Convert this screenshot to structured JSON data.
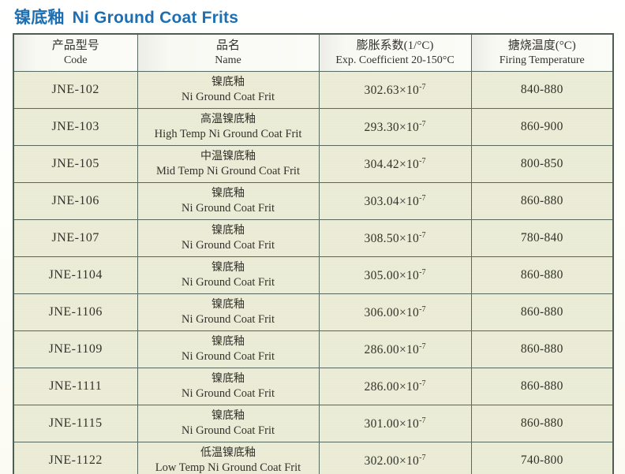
{
  "page": {
    "title_cn": "镍底釉",
    "title_en": "Ni Ground Coat Frits"
  },
  "colors": {
    "title_blue": "#1e6fb2",
    "row_background": "#ecedd8",
    "header_background": "#fbfbf7",
    "grid_border": "#5a6a60"
  },
  "table": {
    "headers": [
      {
        "cn": "产品型号",
        "en": "Code"
      },
      {
        "cn": "品名",
        "en": "Name"
      },
      {
        "cn": "膨胀系数(1/°C)",
        "en": "Exp. Coefficient 20-150°C"
      },
      {
        "cn": "搪烧温度(°C)",
        "en": "Firing Temperature"
      }
    ],
    "coef_times": "×10",
    "coef_power": "-7",
    "rows": [
      {
        "code": "JNE-102",
        "name_cn": "镍底釉",
        "name_en": "Ni Ground Coat Frit",
        "coef": "302.63",
        "firing": "840-880"
      },
      {
        "code": "JNE-103",
        "name_cn": "高温镍底釉",
        "name_en": "High Temp Ni Ground Coat Frit",
        "coef": "293.30",
        "firing": "860-900"
      },
      {
        "code": "JNE-105",
        "name_cn": "中温镍底釉",
        "name_en": "Mid Temp Ni Ground Coat Frit",
        "coef": "304.42",
        "firing": "800-850"
      },
      {
        "code": "JNE-106",
        "name_cn": "镍底釉",
        "name_en": "Ni Ground Coat Frit",
        "coef": "303.04",
        "firing": "860-880"
      },
      {
        "code": "JNE-107",
        "name_cn": "镍底釉",
        "name_en": "Ni Ground Coat Frit",
        "coef": "308.50",
        "firing": "780-840"
      },
      {
        "code": "JNE-1104",
        "name_cn": "镍底釉",
        "name_en": "Ni Ground Coat Frit",
        "coef": "305.00",
        "firing": "860-880"
      },
      {
        "code": "JNE-1106",
        "name_cn": "镍底釉",
        "name_en": "Ni Ground Coat Frit",
        "coef": "306.00",
        "firing": "860-880"
      },
      {
        "code": "JNE-1109",
        "name_cn": "镍底釉",
        "name_en": "Ni Ground Coat Frit",
        "coef": "286.00",
        "firing": "860-880"
      },
      {
        "code": "JNE-1111",
        "name_cn": "镍底釉",
        "name_en": "Ni Ground Coat Frit",
        "coef": "286.00",
        "firing": "860-880"
      },
      {
        "code": "JNE-1115",
        "name_cn": "镍底釉",
        "name_en": "Ni Ground Coat Frit",
        "coef": "301.00",
        "firing": "860-880"
      },
      {
        "code": "JNE-1122",
        "name_cn": "低温镍底釉",
        "name_en": "Low Temp Ni Ground Coat Frit",
        "coef": "302.00",
        "firing": "740-800"
      }
    ]
  }
}
